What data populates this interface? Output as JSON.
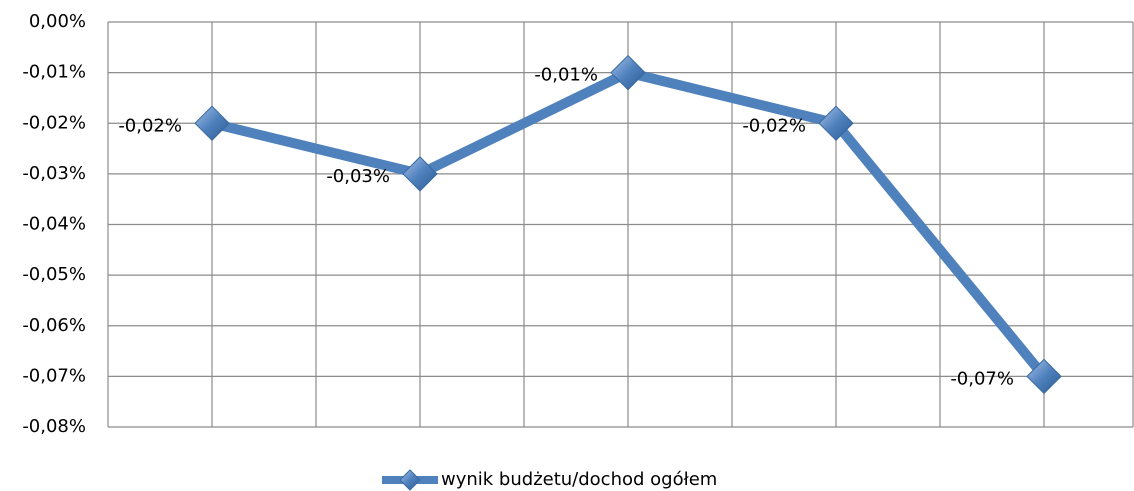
{
  "chart_data": {
    "type": "line",
    "categories": [
      null,
      null,
      null,
      null,
      null
    ],
    "series": [
      {
        "name": "wynik budżetu/dochod ogółem",
        "color": "#4f81bd",
        "values": [
          -0.02,
          -0.03,
          -0.01,
          -0.02,
          -0.07
        ],
        "value_labels": [
          "-0,02%",
          "-0,03%",
          "-0,01%",
          "-0,02%",
          "-0,07%"
        ]
      }
    ],
    "ylim": [
      -0.08,
      0
    ],
    "yticks": [
      {
        "value": 0,
        "label": "0,00%"
      },
      {
        "value": -0.01,
        "label": "-0,01%"
      },
      {
        "value": -0.02,
        "label": "-0,02%"
      },
      {
        "value": -0.03,
        "label": "-0,03%"
      },
      {
        "value": -0.04,
        "label": "-0,04%"
      },
      {
        "value": -0.05,
        "label": "-0,05%"
      },
      {
        "value": -0.06,
        "label": "-0,06%"
      },
      {
        "value": -0.07,
        "label": "-0,07%"
      },
      {
        "value": -0.08,
        "label": "-0,08%"
      }
    ],
    "grid": true,
    "legend": "bottom"
  }
}
